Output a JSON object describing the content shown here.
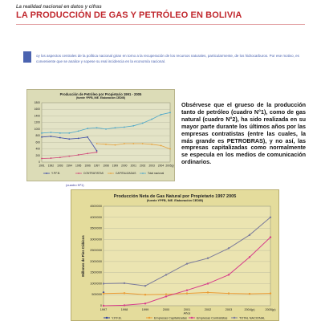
{
  "header": {
    "kicker": "La realidad nacional en datos y cifras",
    "title": "LA PRODUCCIÓN DE GAS Y PETRÓLEO EN BOLIVIA"
  },
  "intro": {
    "dropcap": "H",
    "text": "oy los aspectos centrales de la política nacional giran en torno a la recuperación de los recursos naturales, particularmente, de los hidrocarburos. Por ese motivo, es conveniente que se analice y sopese su real incidencia en la economía nacional."
  },
  "side_text": "Obsérvese que el grueso de la producción tanto de petróleo (cuadro N°1), como de gas natural (cuadro N°2), ha sido realizada en su mayor parte durante los últimos años por las empresas contratistas (entre las cuales, la más grande es PETROBRAS), y no así, las empresas capitalizadas como normalmente se especula en los medios de comunicación ordinarios.",
  "caption1": "(cuadro Nº1)",
  "colors": {
    "title_red": "#c0272d",
    "intro_blue": "#4b63b0"
  },
  "chart_data": [
    {
      "type": "line",
      "title": "Producción de Petróleo por Propietario 1991 - 2005",
      "subtitle": "(fuente YPFB, INE. Elaboración CEDIB)",
      "categories": [
        "1991",
        "1992",
        "1993",
        "1994",
        "1995",
        "1996",
        "1997",
        "1998",
        "1999",
        "2000",
        "2001",
        "2002",
        "2003",
        "2004",
        "2005(p)"
      ],
      "y_ticks": [
        "0",
        "200",
        "400",
        "600",
        "800",
        "1000",
        "1200",
        "1400",
        "1600",
        "1800"
      ],
      "ylim": [
        0,
        1800
      ],
      "legend": [
        "Y.P.F.B.",
        "CONTRATISTAS",
        "CAPITALIZADAS",
        "Total nacional"
      ],
      "series": [
        {
          "name": "Y.P.F.B.",
          "color": "#3b4aa7",
          "values": [
            760,
            780,
            740,
            700,
            720,
            760,
            340,
            null,
            null,
            null,
            null,
            null,
            null,
            null,
            null
          ]
        },
        {
          "name": "CONTRATISTAS",
          "color": "#d1497a",
          "values": [
            110,
            120,
            140,
            180,
            220,
            260,
            300,
            null,
            null,
            null,
            null,
            null,
            null,
            null,
            null
          ]
        },
        {
          "name": "CAPITALIZADAS",
          "color": "#e6a23c",
          "values": [
            null,
            null,
            null,
            null,
            null,
            null,
            560,
            540,
            520,
            560,
            560,
            560,
            540,
            500,
            400
          ]
        },
        {
          "name": "Total nacional",
          "color": "#4fa8c8",
          "values": [
            880,
            900,
            880,
            880,
            940,
            1020,
            1040,
            1000,
            1040,
            1060,
            1100,
            1180,
            1300,
            1440,
            1500
          ]
        }
      ]
    },
    {
      "type": "line",
      "title": "Producción Neta de Gas Natural por Propietario 1997 2005",
      "subtitle": "(fuente YPFB, INE. Elaboración CEDIB)",
      "ylabel": "Millones de Pies Cúbicos",
      "xlabel": "Años",
      "categories": [
        "1997",
        "1998",
        "1999",
        "2000",
        "2001",
        "2002",
        "2003",
        "2004(p)",
        "2005(p)"
      ],
      "y_ticks": [
        "0",
        "500000",
        "1000000",
        "1500000",
        "2000000",
        "2500000",
        "3000000",
        "3500000",
        "4000000",
        "4500000"
      ],
      "ylim": [
        0,
        4500000
      ],
      "legend": [
        "Y.P.F.B.",
        "Empresas Capitalizadas",
        "Empresas Contratistas",
        "TOTAL NACIONAL"
      ],
      "series": [
        {
          "name": "Y.P.F.B.",
          "color": "#2c3e9f",
          "values": [
            600000,
            null,
            null,
            null,
            null,
            null,
            null,
            null,
            null
          ]
        },
        {
          "name": "Empresas Capitalizadas",
          "color": "#ea9a33",
          "values": [
            550000,
            570000,
            500000,
            520000,
            560000,
            600000,
            560000,
            540000,
            560000
          ]
        },
        {
          "name": "Empresas Contratistas",
          "color": "#d63d8a",
          "values": [
            0,
            20000,
            100000,
            420000,
            700000,
            1000000,
            1400000,
            2200000,
            3100000
          ]
        },
        {
          "name": "TOTAL NACIONAL",
          "color": "#7b7b9b",
          "values": [
            1000000,
            1020000,
            900000,
            1400000,
            1900000,
            2150000,
            2600000,
            3200000,
            4000000
          ]
        }
      ]
    }
  ]
}
